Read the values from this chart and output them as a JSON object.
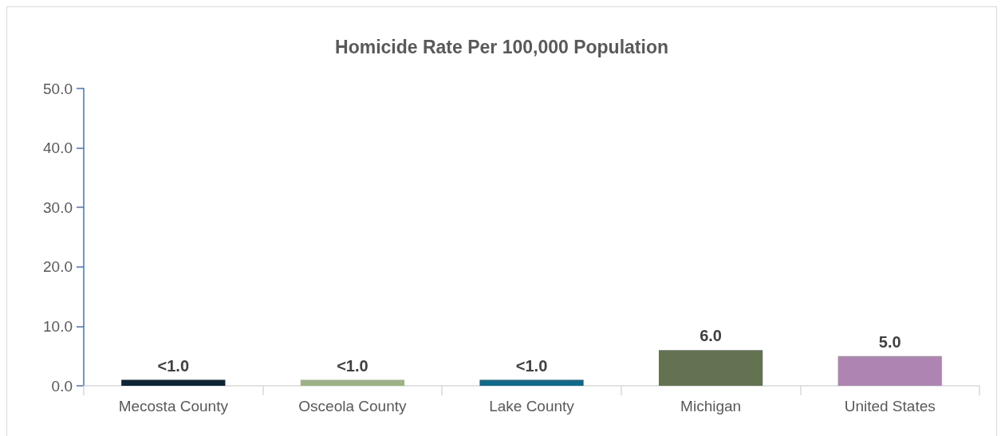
{
  "chart_data": {
    "type": "bar",
    "title": "Homicide Rate Per 100,000 Population",
    "categories": [
      "Mecosta County",
      "Osceola County",
      "Lake County",
      "Michigan",
      "United States"
    ],
    "values": [
      1.0,
      1.0,
      1.0,
      6.0,
      5.0
    ],
    "colors": [
      "#0c2637",
      "#9bb383",
      "#0e6a8c",
      "#637352",
      "#ae85b2"
    ],
    "value_labels": [
      "<1.0",
      "<1.0",
      "<1.0",
      "6.0",
      "5.0"
    ],
    "ylim": [
      0,
      50
    ],
    "yticks": [
      {
        "value": 0,
        "label": "0.0"
      },
      {
        "value": 10,
        "label": "10.0"
      },
      {
        "value": 20,
        "label": "20.0"
      },
      {
        "value": 30,
        "label": "30.0"
      },
      {
        "value": 40,
        "label": "40.0"
      },
      {
        "value": 50,
        "label": "50.0"
      }
    ],
    "grid": false
  }
}
